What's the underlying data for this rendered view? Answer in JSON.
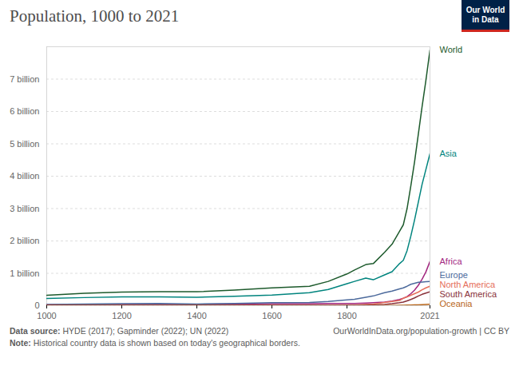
{
  "chart_data": {
    "type": "line",
    "title": "Population, 1000 to 2021",
    "logo": [
      "Our World",
      "in Data"
    ],
    "source_label": "Data source:",
    "source": "HYDE (2017); Gapminder (2022); UN (2022)",
    "note_label": "Note:",
    "note": "Historical country data is shown based on today's geographical borders.",
    "url": "OurWorldInData.org/population-growth | CC BY",
    "x": [
      1000,
      1100,
      1200,
      1300,
      1400,
      1500,
      1600,
      1700,
      1750,
      1800,
      1820,
      1850,
      1870,
      1900,
      1920,
      1940,
      1950,
      1960,
      1970,
      1980,
      1990,
      2000,
      2010,
      2021
    ],
    "series": [
      {
        "name": "World",
        "color": "#1d5a2c",
        "values": [
          0.32,
          0.38,
          0.42,
          0.43,
          0.43,
          0.48,
          0.55,
          0.6,
          0.75,
          0.98,
          1.1,
          1.27,
          1.3,
          1.65,
          1.9,
          2.3,
          2.5,
          3.0,
          3.7,
          4.45,
          5.3,
          6.15,
          6.95,
          7.9
        ]
      },
      {
        "name": "Asia",
        "color": "#00847e",
        "values": [
          0.22,
          0.25,
          0.27,
          0.27,
          0.26,
          0.29,
          0.33,
          0.4,
          0.5,
          0.68,
          0.75,
          0.85,
          0.8,
          0.95,
          1.05,
          1.3,
          1.4,
          1.7,
          2.15,
          2.65,
          3.2,
          3.75,
          4.2,
          4.7
        ]
      },
      {
        "name": "Africa",
        "color": "#a2267f",
        "values": [
          0.03,
          0.03,
          0.04,
          0.04,
          0.04,
          0.05,
          0.06,
          0.06,
          0.07,
          0.07,
          0.07,
          0.08,
          0.09,
          0.11,
          0.14,
          0.19,
          0.23,
          0.28,
          0.37,
          0.48,
          0.63,
          0.82,
          1.04,
          1.37
        ]
      },
      {
        "name": "Europe",
        "color": "#4c6a9c",
        "values": [
          0.04,
          0.05,
          0.06,
          0.07,
          0.05,
          0.07,
          0.09,
          0.1,
          0.13,
          0.18,
          0.2,
          0.26,
          0.3,
          0.4,
          0.45,
          0.52,
          0.55,
          0.6,
          0.66,
          0.69,
          0.72,
          0.73,
          0.74,
          0.745
        ]
      },
      {
        "name": "North America",
        "color": "#e56e5a",
        "values": [
          0.01,
          0.01,
          0.01,
          0.01,
          0.01,
          0.01,
          0.01,
          0.01,
          0.01,
          0.02,
          0.02,
          0.04,
          0.05,
          0.1,
          0.13,
          0.16,
          0.23,
          0.27,
          0.32,
          0.37,
          0.42,
          0.49,
          0.55,
          0.6
        ]
      },
      {
        "name": "South America",
        "color": "#883039",
        "values": [
          0.01,
          0.01,
          0.01,
          0.01,
          0.01,
          0.01,
          0.01,
          0.01,
          0.01,
          0.01,
          0.01,
          0.02,
          0.02,
          0.04,
          0.06,
          0.09,
          0.11,
          0.15,
          0.19,
          0.24,
          0.3,
          0.35,
          0.39,
          0.43
        ]
      },
      {
        "name": "Oceania",
        "color": "#b8661a",
        "values": [
          0.002,
          0.002,
          0.002,
          0.002,
          0.002,
          0.002,
          0.002,
          0.002,
          0.002,
          0.002,
          0.002,
          0.002,
          0.003,
          0.006,
          0.009,
          0.011,
          0.013,
          0.016,
          0.02,
          0.023,
          0.027,
          0.031,
          0.037,
          0.044
        ]
      }
    ],
    "xlim": [
      1000,
      2021
    ],
    "xticks": [
      1000,
      1200,
      1400,
      1600,
      1800,
      2021
    ],
    "ylim": [
      0,
      8
    ],
    "yticks": [
      0,
      {
        "value": 1,
        "label": "1 billion"
      },
      {
        "value": 2,
        "label": "2 billion"
      },
      {
        "value": 3,
        "label": "3 billion"
      },
      {
        "value": 4,
        "label": "4 billion"
      },
      {
        "value": 5,
        "label": "5 billion"
      },
      {
        "value": 6,
        "label": "6 billion"
      },
      {
        "value": 7,
        "label": "7 billion"
      }
    ],
    "grid": true
  }
}
